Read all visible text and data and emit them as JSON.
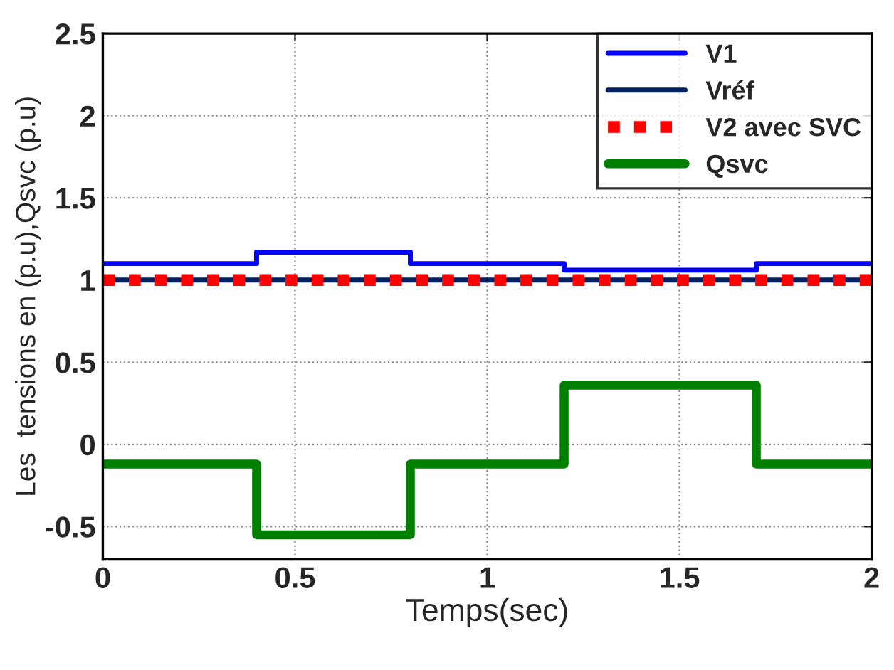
{
  "chart_data": {
    "type": "step",
    "xlabel": "Temps(sec)",
    "ylabel": "Les  tensions en (p.u),Qsvc (p.u)",
    "xlim": [
      0,
      2
    ],
    "xticks": [
      0,
      0.5,
      1,
      1.5,
      2
    ],
    "ylim": [
      -0.7,
      2.5
    ],
    "yticks": [
      -0.5,
      0,
      0.5,
      1,
      1.5,
      2,
      2.5
    ],
    "grid": true,
    "legend": "top right",
    "series": [
      {
        "name": "V1",
        "color": "#0000ff",
        "line_style": "solid",
        "x": [
          0,
          0.4,
          0.8,
          1.2,
          1.7,
          2
        ],
        "values": [
          1.1,
          1.17,
          1.1,
          1.06,
          1.1,
          1.1
        ]
      },
      {
        "name": "Vréf",
        "color": "#002060",
        "line_style": "solid",
        "x": [
          0,
          2
        ],
        "values": [
          1,
          1
        ]
      },
      {
        "name": "V2 avec SVC",
        "color": "#ff0000",
        "line_style": "dotted",
        "x": [
          0,
          2
        ],
        "values": [
          1,
          1
        ]
      },
      {
        "name": "Qsvc",
        "color": "#008000",
        "line_style": "solid",
        "x": [
          0,
          0.4,
          0.8,
          1.2,
          1.7,
          2
        ],
        "values": [
          -0.12,
          -0.55,
          -0.12,
          0.36,
          -0.12,
          -0.12
        ]
      }
    ]
  }
}
